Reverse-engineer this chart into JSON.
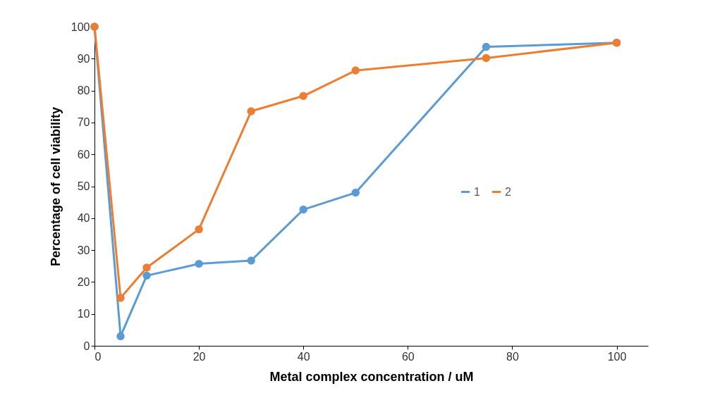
{
  "chart_data": {
    "type": "line",
    "xlabel": "Metal complex concentration / uM",
    "ylabel": "Percentage of cell viability",
    "xlim": [
      0,
      106
    ],
    "xticks": [
      0,
      20,
      40,
      60,
      80,
      100
    ],
    "ylim": [
      0,
      100
    ],
    "yticks": [
      0,
      10,
      20,
      30,
      40,
      50,
      60,
      70,
      80,
      90,
      100
    ],
    "x": [
      0,
      5,
      10,
      20,
      30,
      40,
      50,
      75,
      100
    ],
    "series": [
      {
        "name": "1",
        "color": "#5b9bd5",
        "values": [
          100,
          3,
          22,
          25.7,
          26.7,
          42.7,
          48,
          93.7,
          95
        ]
      },
      {
        "name": "2",
        "color": "#ed7d31",
        "values": [
          100,
          15,
          24.5,
          36.5,
          73.5,
          78.3,
          86.3,
          90.2,
          95
        ]
      }
    ],
    "marker": "circle",
    "line_style": "solid",
    "grid": false,
    "legend": "right"
  }
}
